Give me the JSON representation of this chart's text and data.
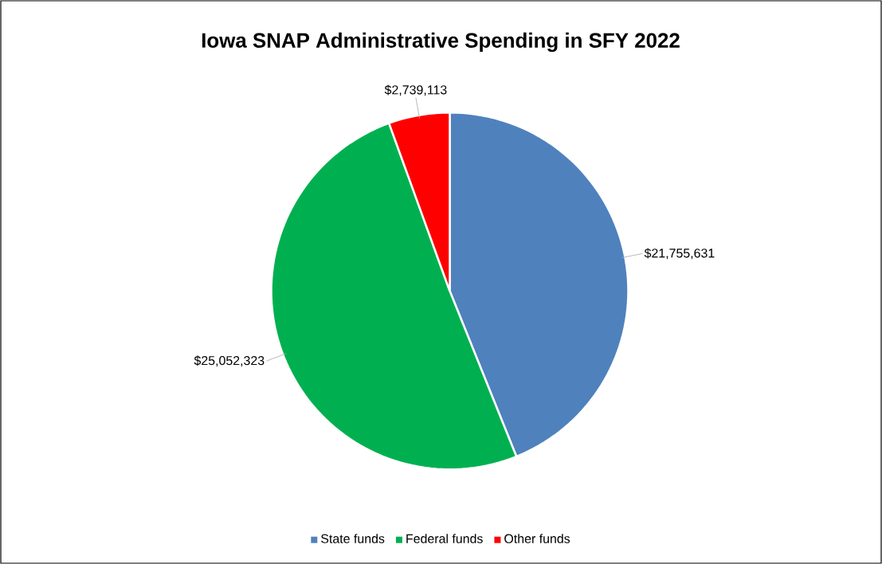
{
  "chart_data": {
    "type": "pie",
    "title": "Iowa SNAP Administrative Spending in SFY 2022",
    "categories": [
      "State funds",
      "Federal funds",
      "Other funds"
    ],
    "values": [
      21755631,
      25052323,
      2739113
    ],
    "colors": [
      "#4f81bd",
      "#00b050",
      "#ff0000"
    ],
    "value_labels": [
      "$21,755,631",
      "$25,052,323",
      "$2,739,113"
    ],
    "legend": "bottom"
  }
}
